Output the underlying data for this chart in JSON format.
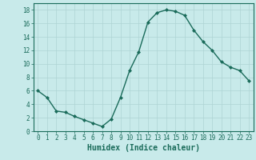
{
  "x": [
    0,
    1,
    2,
    3,
    4,
    5,
    6,
    7,
    8,
    9,
    10,
    11,
    12,
    13,
    14,
    15,
    16,
    17,
    18,
    19,
    20,
    21,
    22,
    23
  ],
  "y": [
    6,
    5,
    3,
    2.8,
    2.2,
    1.7,
    1.2,
    0.7,
    1.8,
    5,
    9,
    11.8,
    16.2,
    17.6,
    18,
    17.8,
    17.2,
    15,
    13.3,
    12,
    10.3,
    9.5,
    9,
    7.5
  ],
  "line_color": "#1a6b5a",
  "marker": "D",
  "marker_size": 2.0,
  "line_width": 1.0,
  "xlabel": "Humidex (Indice chaleur)",
  "xlabel_fontsize": 7,
  "xlabel_color": "#1a6b5a",
  "xlim": [
    -0.5,
    23.5
  ],
  "ylim": [
    0,
    19
  ],
  "yticks": [
    0,
    2,
    4,
    6,
    8,
    10,
    12,
    14,
    16,
    18
  ],
  "xticks": [
    0,
    1,
    2,
    3,
    4,
    5,
    6,
    7,
    8,
    9,
    10,
    11,
    12,
    13,
    14,
    15,
    16,
    17,
    18,
    19,
    20,
    21,
    22,
    23
  ],
  "bg_color": "#c8eaea",
  "grid_color": "#aed4d4",
  "tick_fontsize": 5.5,
  "tick_color": "#1a6b5a",
  "spine_color": "#1a6b5a"
}
